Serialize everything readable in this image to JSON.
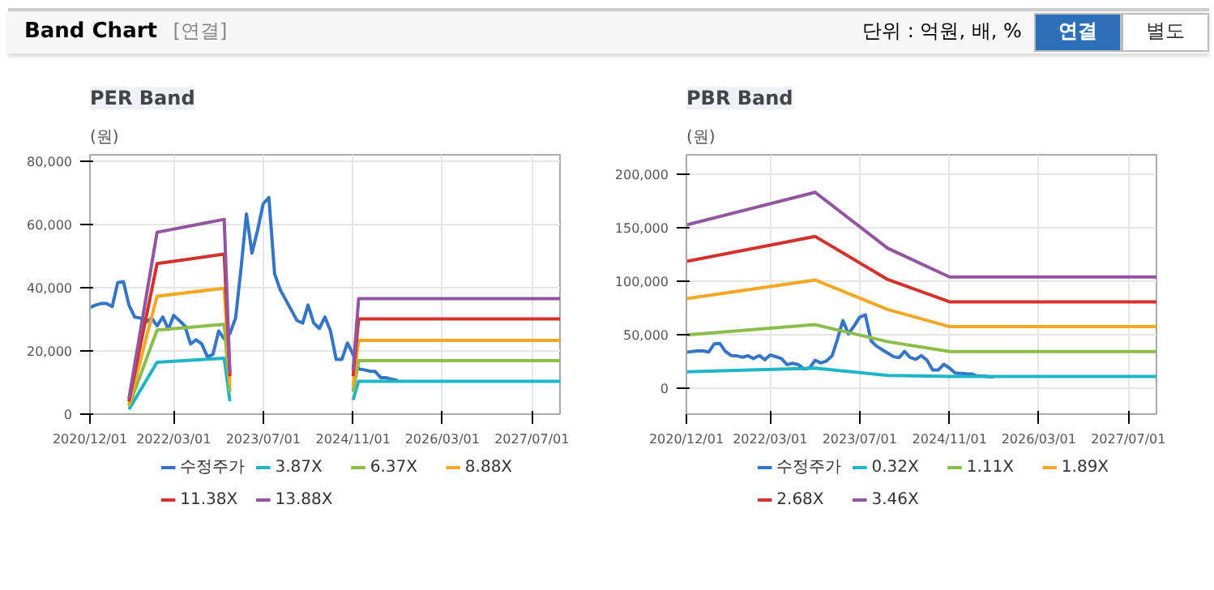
{
  "chart_data": [
    {
      "type": "other",
      "title": "Band Chart",
      "annotations": [
        "[연결]",
        "단위 : 억원, 배, %",
        "연결",
        "별도"
      ]
    },
    {
      "type": "line",
      "title": "PER Band",
      "ylabel": "(원)",
      "grid": true,
      "legend": "bottom",
      "xlim": [
        "2020-12-01",
        "2027-12-01"
      ],
      "ylim": [
        0,
        82000
      ],
      "xticks": [
        {
          "value": "2020-12-01",
          "label": "2020/12/01"
        },
        {
          "value": "2022-03-01",
          "label": "2022/03/01"
        },
        {
          "value": "2023-07-01",
          "label": "2023/07/01"
        },
        {
          "value": "2024-11-01",
          "label": "2024/11/01"
        },
        {
          "value": "2026-03-01",
          "label": "2026/03/01"
        },
        {
          "value": "2027-07-01",
          "label": "2027/07/01"
        }
      ],
      "yticks": [
        0,
        {
          "value": 20000,
          "label": "20,000"
        },
        {
          "value": 40000,
          "label": "40,000"
        },
        {
          "value": 60000,
          "label": "60,000"
        },
        {
          "value": 80000,
          "label": "80,000"
        }
      ],
      "x": [
        "2020-12",
        "2021-01",
        "2021-02",
        "2021-03",
        "2021-04",
        "2021-05",
        "2021-06",
        "2021-07",
        "2021-08",
        "2021-09",
        "2021-10",
        "2021-11",
        "2021-12",
        "2022-01",
        "2022-02",
        "2022-03",
        "2022-04",
        "2022-05",
        "2022-06",
        "2022-07",
        "2022-08",
        "2022-09",
        "2022-10",
        "2022-11",
        "2022-12",
        "2023-01",
        "2023-02",
        "2023-03",
        "2023-04",
        "2023-05",
        "2023-06",
        "2023-07",
        "2023-08",
        "2023-09",
        "2023-10",
        "2023-11",
        "2023-12",
        "2024-01",
        "2024-02",
        "2024-03",
        "2024-04",
        "2024-05",
        "2024-06",
        "2024-07",
        "2024-08",
        "2024-09",
        "2024-10",
        "2024-11",
        "2024-12",
        "2025-01",
        "2025-02",
        "2025-03",
        "2025-04",
        "2025-05",
        "2025-06",
        "2025-07"
      ],
      "series": [
        {
          "name": "수정주가",
          "color": "#3575c8",
          "values": [
            33700,
            34500,
            35000,
            35000,
            34000,
            41600,
            41900,
            34500,
            30700,
            30400,
            29100,
            30400,
            27900,
            30700,
            26800,
            31200,
            29600,
            27900,
            22200,
            23500,
            22200,
            18100,
            18900,
            26300,
            23800,
            25500,
            30400,
            45200,
            63300,
            50900,
            58300,
            66500,
            68500,
            44400,
            39400,
            36100,
            32900,
            29600,
            28800,
            34500,
            28800,
            27100,
            30700,
            26300,
            17300,
            17300,
            22500,
            18900,
            14300,
            14000,
            13600,
            13500,
            11500,
            11500,
            11000,
            10700
          ]
        },
        {
          "name": "3.87X",
          "color": "#1fb5c9",
          "x": [
            "2021-07",
            "2021-12",
            "2022-12",
            "2023-01",
            "2023-06",
            "2024-11",
            "2024-12",
            "2027-12"
          ],
          "values": [
            1500,
            16400,
            17700,
            4100,
            null,
            4500,
            10400,
            10400
          ]
        },
        {
          "name": "6.37X",
          "color": "#8bbd4a",
          "x": [
            "2021-07",
            "2021-12",
            "2022-12",
            "2023-01",
            "2023-06",
            "2024-11",
            "2024-12",
            "2027-12"
          ],
          "values": [
            2500,
            26600,
            28400,
            7000,
            null,
            7000,
            16900,
            16900
          ]
        },
        {
          "name": "8.88X",
          "color": "#f5a623",
          "x": [
            "2021-07",
            "2021-12",
            "2022-12",
            "2023-01",
            "2023-06",
            "2024-11",
            "2024-12",
            "2027-12"
          ],
          "values": [
            3000,
            37300,
            39800,
            9000,
            null,
            9000,
            23300,
            23300
          ]
        },
        {
          "name": "11.38X",
          "color": "#d3312a",
          "x": [
            "2021-07",
            "2021-12",
            "2022-12",
            "2023-01",
            "2023-06",
            "2024-11",
            "2024-12",
            "2027-12"
          ],
          "values": [
            4000,
            47600,
            50600,
            12000,
            null,
            12000,
            30100,
            30100
          ]
        },
        {
          "name": "13.88X",
          "color": "#9355a0",
          "x": [
            "2021-07",
            "2021-12",
            "2022-12",
            "2023-01",
            "2023-06",
            "2024-11",
            "2024-12",
            "2027-12"
          ],
          "values": [
            4900,
            57500,
            61600,
            13000,
            null,
            14000,
            36500,
            36500
          ]
        }
      ]
    },
    {
      "type": "line",
      "title": "PBR Band",
      "ylabel": "(원)",
      "grid": true,
      "legend": "bottom",
      "xlim": [
        "2020-12-01",
        "2027-12-01"
      ],
      "ylim": [
        -24000,
        218000
      ],
      "xticks": [
        {
          "value": "2020-12-01",
          "label": "2020/12/01"
        },
        {
          "value": "2022-03-01",
          "label": "2022/03/01"
        },
        {
          "value": "2023-07-01",
          "label": "2023/07/01"
        },
        {
          "value": "2024-11-01",
          "label": "2024/11/01"
        },
        {
          "value": "2026-03-01",
          "label": "2026/03/01"
        },
        {
          "value": "2027-07-01",
          "label": "2027/07/01"
        }
      ],
      "yticks": [
        0,
        {
          "value": 50000,
          "label": "50,000"
        },
        {
          "value": 100000,
          "label": "100,000"
        },
        {
          "value": 150000,
          "label": "150,000"
        },
        {
          "value": 200000,
          "label": "200,000"
        }
      ],
      "x": [
        "2020-12",
        "2021-01",
        "2021-02",
        "2021-03",
        "2021-04",
        "2021-05",
        "2021-06",
        "2021-07",
        "2021-08",
        "2021-09",
        "2021-10",
        "2021-11",
        "2021-12",
        "2022-01",
        "2022-02",
        "2022-03",
        "2022-04",
        "2022-05",
        "2022-06",
        "2022-07",
        "2022-08",
        "2022-09",
        "2022-10",
        "2022-11",
        "2022-12",
        "2023-01",
        "2023-02",
        "2023-03",
        "2023-04",
        "2023-05",
        "2023-06",
        "2023-07",
        "2023-08",
        "2023-09",
        "2023-10",
        "2023-11",
        "2023-12",
        "2024-01",
        "2024-02",
        "2024-03",
        "2024-04",
        "2024-05",
        "2024-06",
        "2024-07",
        "2024-08",
        "2024-09",
        "2024-10",
        "2024-11",
        "2024-12",
        "2025-01",
        "2025-02",
        "2025-03",
        "2025-04",
        "2025-05",
        "2025-06",
        "2025-07"
      ],
      "series": [
        {
          "name": "수정주가",
          "color": "#3575c8",
          "values": [
            33700,
            34500,
            35000,
            35000,
            34000,
            41600,
            41900,
            34500,
            30700,
            30400,
            29100,
            30400,
            27900,
            30700,
            26800,
            31200,
            29600,
            27900,
            22200,
            23500,
            22200,
            18100,
            18900,
            26300,
            23800,
            25500,
            30400,
            45200,
            63300,
            50900,
            58300,
            66500,
            68500,
            44400,
            39400,
            36100,
            32900,
            29600,
            28800,
            34500,
            28800,
            27100,
            30700,
            26300,
            17300,
            17300,
            22500,
            18900,
            14300,
            14000,
            13600,
            13500,
            11500,
            11500,
            11000,
            10700
          ]
        },
        {
          "name": "0.32X",
          "color": "#1fb5c9",
          "x": [
            "2020-12",
            "2022-11",
            "2023-12",
            "2024-11",
            "2027-12"
          ],
          "values": [
            15500,
            18900,
            12100,
            11100,
            11100
          ]
        },
        {
          "name": "1.11X",
          "color": "#8bbd4a",
          "x": [
            "2020-12",
            "2022-11",
            "2023-12",
            "2024-11",
            "2027-12"
          ],
          "values": [
            49900,
            59500,
            43600,
            34400,
            34400
          ]
        },
        {
          "name": "1.89X",
          "color": "#f5a623",
          "x": [
            "2020-12",
            "2022-11",
            "2023-12",
            "2024-11",
            "2027-12"
          ],
          "values": [
            83700,
            101200,
            73600,
            57600,
            57600
          ]
        },
        {
          "name": "2.68X",
          "color": "#d3312a",
          "x": [
            "2020-12",
            "2022-11",
            "2023-12",
            "2024-11",
            "2027-12"
          ],
          "values": [
            118600,
            141800,
            101600,
            80800,
            80800
          ]
        },
        {
          "name": "3.46X",
          "color": "#9355a0",
          "x": [
            "2020-12",
            "2022-11",
            "2023-12",
            "2024-11",
            "2027-12"
          ],
          "values": [
            152500,
            183000,
            130700,
            104000,
            104000
          ]
        }
      ]
    }
  ]
}
